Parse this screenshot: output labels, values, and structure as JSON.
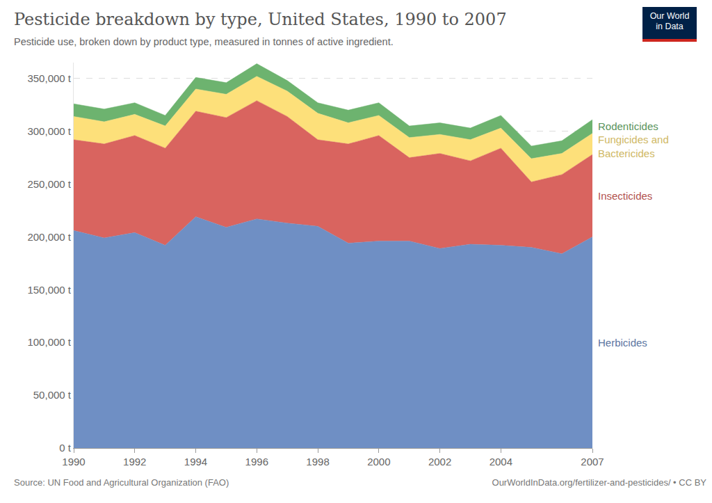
{
  "chart_data": {
    "type": "area",
    "stacked": true,
    "title": "Pesticide breakdown by type, United States, 1990 to 2007",
    "subtitle": "Pesticide use, broken down by product type, measured in tonnes of active ingredient.",
    "source": "Source: UN Food and Agricultural Organization (FAO)",
    "url": "OurWorldInData.org/fertilizer-and-pesticides/ • CC BY",
    "logo": "Our World in Data",
    "x": [
      1990,
      1991,
      1992,
      1993,
      1994,
      1995,
      1996,
      1997,
      1998,
      1999,
      2000,
      2001,
      2002,
      2003,
      2004,
      2005,
      2006,
      2007
    ],
    "series": [
      {
        "name": "Herbicides",
        "color": "#6f8fc4",
        "values": [
          206000,
          199000,
          204000,
          192000,
          219000,
          209000,
          217000,
          213000,
          210000,
          194000,
          196000,
          196000,
          189000,
          193000,
          192000,
          190000,
          184000,
          200000
        ]
      },
      {
        "name": "Insecticides",
        "color": "#d9645f",
        "values": [
          86000,
          89000,
          92000,
          92000,
          100000,
          104000,
          112000,
          101000,
          82000,
          94000,
          100000,
          79000,
          90000,
          79000,
          92000,
          62000,
          75000,
          78000
        ]
      },
      {
        "name": "Fungicides and Bactericides",
        "color": "#fde07a",
        "values": [
          22000,
          21000,
          20000,
          21000,
          21000,
          22000,
          23000,
          24000,
          25000,
          20000,
          19000,
          19000,
          18000,
          20000,
          19000,
          22000,
          20000,
          20000
        ]
      },
      {
        "name": "Rodenticides",
        "color": "#6db36f",
        "values": [
          12000,
          12000,
          11000,
          10000,
          11000,
          11000,
          12000,
          10000,
          10000,
          12000,
          12000,
          11000,
          11000,
          11000,
          12000,
          12000,
          12000,
          13000
        ]
      }
    ],
    "xlim": [
      1990,
      2007
    ],
    "xticks": [
      1990,
      1992,
      1994,
      1996,
      1998,
      2000,
      2002,
      2004,
      2007
    ],
    "ylim": [
      0,
      365000
    ],
    "yticks": [
      {
        "value": 0,
        "label": "0 t"
      },
      {
        "value": 50000,
        "label": "50,000 t"
      },
      {
        "value": 100000,
        "label": "100,000 t"
      },
      {
        "value": 150000,
        "label": "150,000 t"
      },
      {
        "value": 200000,
        "label": "200,000 t"
      },
      {
        "value": 250000,
        "label": "250,000 t"
      },
      {
        "value": 300000,
        "label": "300,000 t"
      },
      {
        "value": 350000,
        "label": "350,000 t"
      }
    ],
    "grid": true
  }
}
